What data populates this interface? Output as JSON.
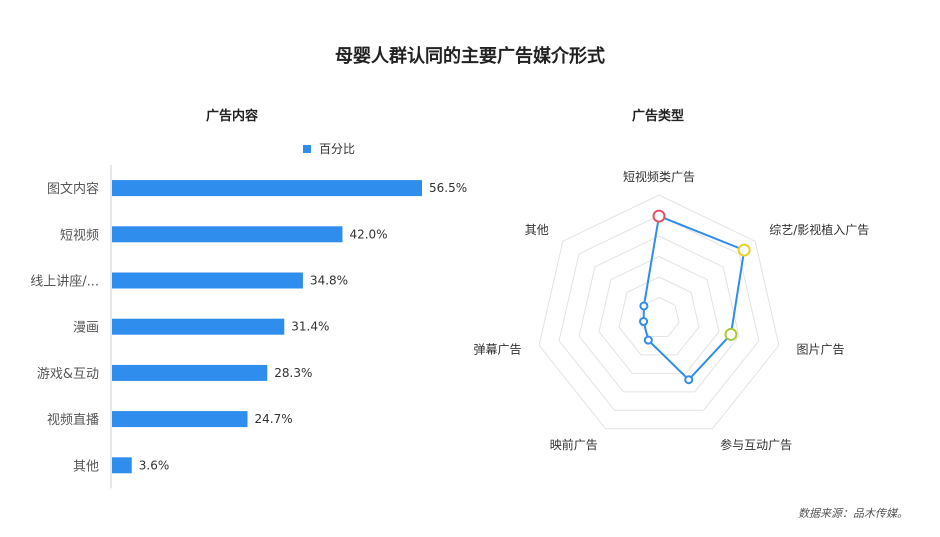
{
  "title": "母婴人群认同的主要广告媒介形式",
  "source": "数据来源：品木传媒。",
  "chart_data": [
    {
      "type": "bar",
      "orientation": "horizontal",
      "title": "广告内容",
      "legend": [
        "百分比"
      ],
      "legend_placement": "top",
      "categories": [
        "图文内容",
        "短视频",
        "线上讲座/...",
        "漫画",
        "游戏&互动",
        "视频直播",
        "其他"
      ],
      "values": [
        56.5,
        42.0,
        34.8,
        31.4,
        28.3,
        24.7,
        3.6
      ],
      "value_labels": [
        "56.5%",
        "42.0%",
        "34.8%",
        "31.4%",
        "28.3%",
        "24.7%",
        "3.6%"
      ],
      "xlim": [
        0,
        60
      ],
      "grid": false,
      "colors": {
        "bar": "#2f8ded"
      }
    },
    {
      "type": "radar",
      "title": "广告类型",
      "axes": [
        "短视频类广告",
        "综艺/影视植入广告",
        "图片广告",
        "参与互动广告",
        "映前广告",
        "弹幕广告",
        "其他"
      ],
      "values": [
        58,
        62,
        42,
        39,
        14,
        9,
        11
      ],
      "range": [
        0,
        70
      ],
      "rings": 6,
      "highlight_colors": [
        "#e0506b",
        "#e8d225",
        "#a9c93a",
        null,
        null,
        null,
        null
      ],
      "colors": {
        "line": "#2f8ded",
        "grid": "#e3e3e3"
      }
    }
  ]
}
